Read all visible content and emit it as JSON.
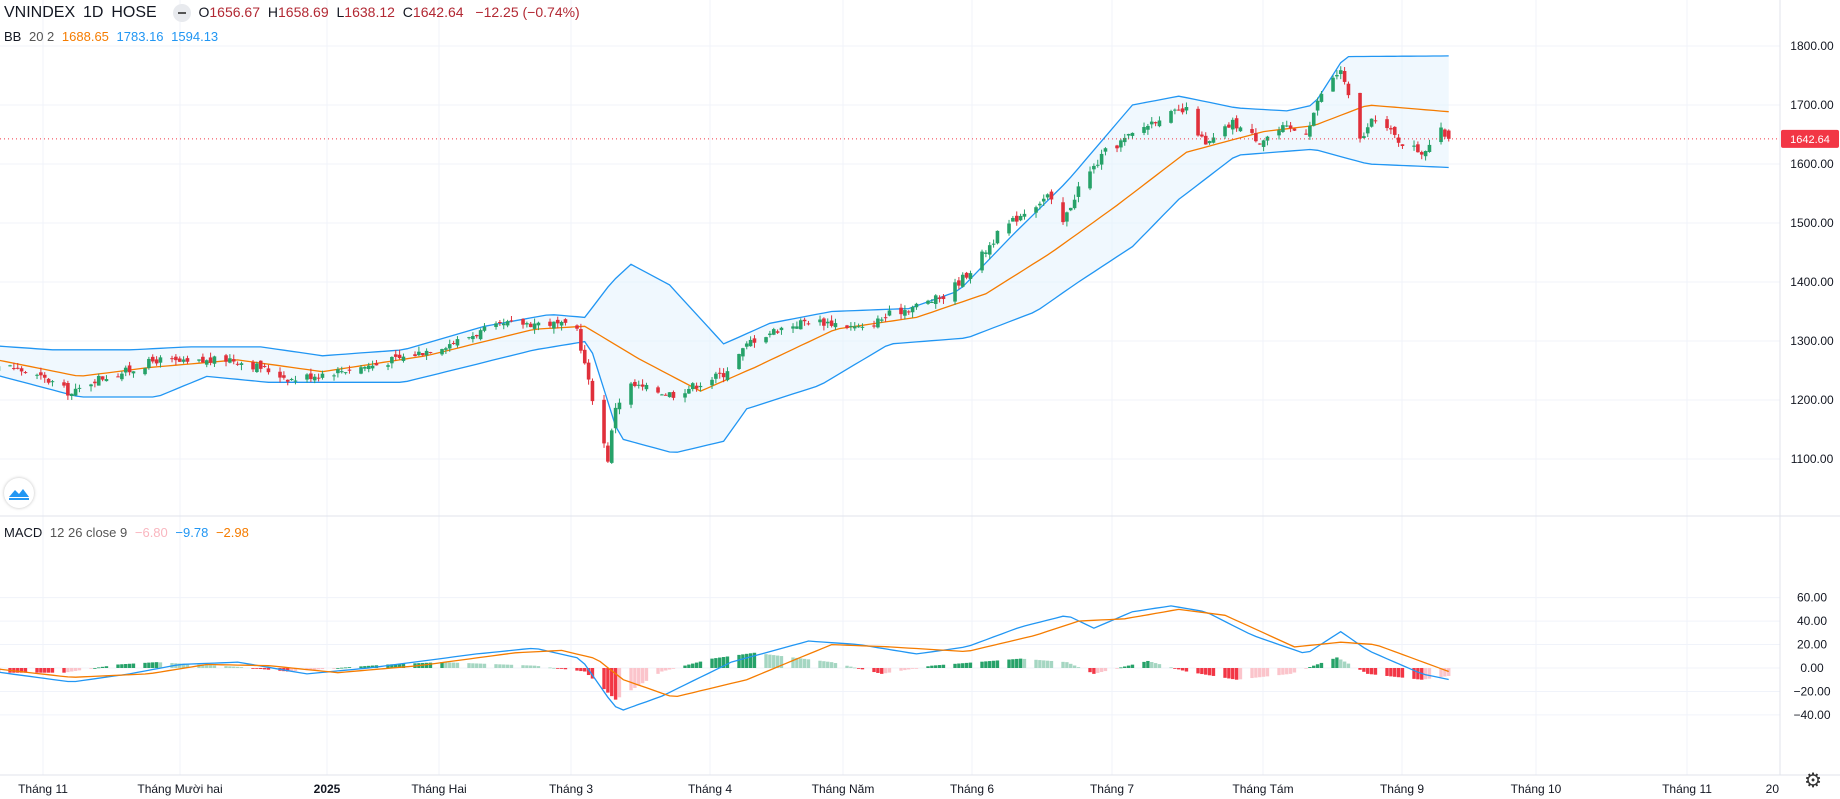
{
  "header": {
    "symbol": "VNINDEX",
    "interval": "1D",
    "exchange": "HOSE",
    "open_label": "O",
    "open": "1656.67",
    "high_label": "H",
    "high": "1658.69",
    "low_label": "L",
    "low": "1638.12",
    "close_label": "C",
    "close": "1642.64",
    "change": "−12.25 (−0.74%)"
  },
  "bb_legend": {
    "name": "BB",
    "params": "20 2",
    "basis": "1688.65",
    "upper": "1783.16",
    "lower": "1594.13"
  },
  "macd_legend": {
    "name": "MACD",
    "params": "12 26 close 9",
    "hist": "−6.80",
    "macd": "−9.78",
    "signal": "−2.98"
  },
  "price_axis": {
    "ticks": [
      "1100.00",
      "1200.00",
      "1300.00",
      "1400.00",
      "1500.00",
      "1600.00",
      "1700.00",
      "1800.00"
    ],
    "last_price_label": "1642.64"
  },
  "macd_axis": {
    "ticks": [
      "−40.00",
      "−20.00",
      "0.00",
      "20.00",
      "40.00",
      "60.00"
    ]
  },
  "time_axis": {
    "labels": [
      "Tháng 11",
      "Tháng Mười hai",
      "2025",
      "Tháng Hai",
      "Tháng 3",
      "Tháng 4",
      "Tháng Năm",
      "Tháng 6",
      "Tháng 7",
      "Tháng Tám",
      "Tháng 9",
      "Tháng 10",
      "Tháng 11",
      "20"
    ]
  },
  "colors": {
    "up": "#26a269",
    "down": "#e0303b",
    "bb_band": "#2196f3",
    "bb_basis": "#f57c00",
    "bb_fill": "#e3f2fd",
    "macd": "#2196f3",
    "signal": "#f57c00",
    "hist_up_strong": "#26a269",
    "hist_up_weak": "#a5d6c2",
    "hist_down_strong": "#f23645",
    "hist_down_weak": "#fbc4cb",
    "last_price": "#f23645"
  },
  "chart_data": [
    {
      "type": "candlestick",
      "title": "VNINDEX 1D HOSE",
      "ylim": [
        1060,
        1830
      ],
      "x_range": [
        "2024-10-24",
        "2025-11-12"
      ],
      "x_ticks": [
        "Tháng 11",
        "Tháng Mười hai",
        "2025",
        "Tháng Hai",
        "Tháng 3",
        "Tháng 4",
        "Tháng Năm",
        "Tháng 6",
        "Tháng 7",
        "Tháng Tám",
        "Tháng 9",
        "Tháng 10",
        "Tháng 11"
      ],
      "y_ticks": [
        1100,
        1200,
        1300,
        1400,
        1500,
        1600,
        1700,
        1800
      ],
      "grid": true,
      "last_ohlc": {
        "open": 1656.67,
        "high": 1658.69,
        "low": 1638.12,
        "close": 1642.64,
        "change": -12.25,
        "change_pct": -0.74
      },
      "close_path": [
        {
          "x": "2024-10-24",
          "y": 1265
        },
        {
          "x": "2024-11-05",
          "y": 1255
        },
        {
          "x": "2024-11-15",
          "y": 1230
        },
        {
          "x": "2024-11-20",
          "y": 1210
        },
        {
          "x": "2024-11-26",
          "y": 1235
        },
        {
          "x": "2024-12-05",
          "y": 1250
        },
        {
          "x": "2024-12-12",
          "y": 1268
        },
        {
          "x": "2024-12-20",
          "y": 1262
        },
        {
          "x": "2024-12-31",
          "y": 1270
        },
        {
          "x": "2025-01-08",
          "y": 1255
        },
        {
          "x": "2025-01-16",
          "y": 1235
        },
        {
          "x": "2025-01-24",
          "y": 1245
        },
        {
          "x": "2025-02-07",
          "y": 1260
        },
        {
          "x": "2025-02-17",
          "y": 1278
        },
        {
          "x": "2025-02-28",
          "y": 1300
        },
        {
          "x": "2025-03-07",
          "y": 1318
        },
        {
          "x": "2025-03-14",
          "y": 1330
        },
        {
          "x": "2025-03-24",
          "y": 1330
        },
        {
          "x": "2025-03-31",
          "y": 1320
        },
        {
          "x": "2025-04-03",
          "y": 1230
        },
        {
          "x": "2025-04-08",
          "y": 1100
        },
        {
          "x": "2025-04-10",
          "y": 1190
        },
        {
          "x": "2025-04-14",
          "y": 1225
        },
        {
          "x": "2025-04-21",
          "y": 1215
        },
        {
          "x": "2025-04-25",
          "y": 1210
        },
        {
          "x": "2025-05-08",
          "y": 1245
        },
        {
          "x": "2025-05-15",
          "y": 1300
        },
        {
          "x": "2025-05-22",
          "y": 1320
        },
        {
          "x": "2025-05-30",
          "y": 1335
        },
        {
          "x": "2025-06-06",
          "y": 1330
        },
        {
          "x": "2025-06-13",
          "y": 1320
        },
        {
          "x": "2025-06-20",
          "y": 1345
        },
        {
          "x": "2025-06-27",
          "y": 1360
        },
        {
          "x": "2025-07-04",
          "y": 1375
        },
        {
          "x": "2025-07-11",
          "y": 1420
        },
        {
          "x": "2025-07-18",
          "y": 1480
        },
        {
          "x": "2025-07-25",
          "y": 1520
        },
        {
          "x": "2025-07-31",
          "y": 1545
        },
        {
          "x": "2025-08-04",
          "y": 1500
        },
        {
          "x": "2025-08-08",
          "y": 1560
        },
        {
          "x": "2025-08-15",
          "y": 1620
        },
        {
          "x": "2025-08-22",
          "y": 1650
        },
        {
          "x": "2025-08-29",
          "y": 1680
        },
        {
          "x": "2025-09-05",
          "y": 1690
        },
        {
          "x": "2025-09-10",
          "y": 1630
        },
        {
          "x": "2025-09-17",
          "y": 1670
        },
        {
          "x": "2025-09-24",
          "y": 1640
        },
        {
          "x": "2025-09-30",
          "y": 1660
        },
        {
          "x": "2025-10-06",
          "y": 1655
        },
        {
          "x": "2025-10-10",
          "y": 1720
        },
        {
          "x": "2025-10-15",
          "y": 1760
        },
        {
          "x": "2025-10-20",
          "y": 1640
        },
        {
          "x": "2025-10-24",
          "y": 1680
        },
        {
          "x": "2025-10-30",
          "y": 1640
        },
        {
          "x": "2025-11-05",
          "y": 1620
        },
        {
          "x": "2025-11-10",
          "y": 1655
        },
        {
          "x": "2025-11-12",
          "y": 1642.64
        }
      ],
      "bollinger": {
        "name": "BB",
        "length": 20,
        "stddev": 2,
        "last": {
          "basis": 1688.65,
          "upper": 1783.16,
          "lower": 1594.13
        },
        "upper_path": [
          {
            "x": "2024-10-24",
            "y": 1295
          },
          {
            "x": "2024-11-15",
            "y": 1285
          },
          {
            "x": "2024-12-05",
            "y": 1285
          },
          {
            "x": "2024-12-20",
            "y": 1290
          },
          {
            "x": "2025-01-08",
            "y": 1290
          },
          {
            "x": "2025-01-24",
            "y": 1275
          },
          {
            "x": "2025-02-14",
            "y": 1285
          },
          {
            "x": "2025-03-07",
            "y": 1325
          },
          {
            "x": "2025-03-24",
            "y": 1345
          },
          {
            "x": "2025-04-02",
            "y": 1340
          },
          {
            "x": "2025-04-09",
            "y": 1400
          },
          {
            "x": "2025-04-14",
            "y": 1430
          },
          {
            "x": "2025-04-24",
            "y": 1395
          },
          {
            "x": "2025-05-08",
            "y": 1295
          },
          {
            "x": "2025-05-20",
            "y": 1330
          },
          {
            "x": "2025-06-05",
            "y": 1350
          },
          {
            "x": "2025-06-25",
            "y": 1355
          },
          {
            "x": "2025-07-08",
            "y": 1385
          },
          {
            "x": "2025-07-22",
            "y": 1480
          },
          {
            "x": "2025-08-05",
            "y": 1570
          },
          {
            "x": "2025-08-22",
            "y": 1700
          },
          {
            "x": "2025-09-03",
            "y": 1715
          },
          {
            "x": "2025-09-18",
            "y": 1695
          },
          {
            "x": "2025-10-01",
            "y": 1690
          },
          {
            "x": "2025-10-08",
            "y": 1700
          },
          {
            "x": "2025-10-16",
            "y": 1782
          },
          {
            "x": "2025-11-12",
            "y": 1783.16
          }
        ],
        "basis_path": [
          {
            "x": "2024-10-24",
            "y": 1278
          },
          {
            "x": "2024-11-22",
            "y": 1240
          },
          {
            "x": "2024-12-10",
            "y": 1255
          },
          {
            "x": "2025-01-02",
            "y": 1268
          },
          {
            "x": "2025-01-24",
            "y": 1248
          },
          {
            "x": "2025-02-20",
            "y": 1275
          },
          {
            "x": "2025-03-20",
            "y": 1320
          },
          {
            "x": "2025-04-02",
            "y": 1325
          },
          {
            "x": "2025-04-16",
            "y": 1270
          },
          {
            "x": "2025-05-02",
            "y": 1215
          },
          {
            "x": "2025-05-16",
            "y": 1255
          },
          {
            "x": "2025-06-06",
            "y": 1320
          },
          {
            "x": "2025-06-27",
            "y": 1340
          },
          {
            "x": "2025-07-15",
            "y": 1380
          },
          {
            "x": "2025-08-01",
            "y": 1450
          },
          {
            "x": "2025-08-18",
            "y": 1530
          },
          {
            "x": "2025-09-05",
            "y": 1620
          },
          {
            "x": "2025-09-25",
            "y": 1655
          },
          {
            "x": "2025-10-08",
            "y": 1665
          },
          {
            "x": "2025-10-22",
            "y": 1700
          },
          {
            "x": "2025-11-12",
            "y": 1688.65
          }
        ],
        "lower_path": [
          {
            "x": "2024-10-24",
            "y": 1255
          },
          {
            "x": "2024-11-22",
            "y": 1205
          },
          {
            "x": "2024-12-12",
            "y": 1205
          },
          {
            "x": "2024-12-25",
            "y": 1240
          },
          {
            "x": "2025-01-10",
            "y": 1230
          },
          {
            "x": "2025-02-14",
            "y": 1230
          },
          {
            "x": "2025-03-20",
            "y": 1285
          },
          {
            "x": "2025-04-03",
            "y": 1300
          },
          {
            "x": "2025-04-11",
            "y": 1135
          },
          {
            "x": "2025-04-25",
            "y": 1110
          },
          {
            "x": "2025-05-08",
            "y": 1130
          },
          {
            "x": "2025-05-14",
            "y": 1185
          },
          {
            "x": "2025-06-02",
            "y": 1225
          },
          {
            "x": "2025-06-20",
            "y": 1295
          },
          {
            "x": "2025-07-10",
            "y": 1305
          },
          {
            "x": "2025-07-28",
            "y": 1350
          },
          {
            "x": "2025-08-08",
            "y": 1400
          },
          {
            "x": "2025-08-22",
            "y": 1460
          },
          {
            "x": "2025-09-03",
            "y": 1540
          },
          {
            "x": "2025-09-18",
            "y": 1615
          },
          {
            "x": "2025-10-08",
            "y": 1625
          },
          {
            "x": "2025-10-22",
            "y": 1600
          },
          {
            "x": "2025-11-12",
            "y": 1594.13
          }
        ]
      }
    },
    {
      "type": "line",
      "title": "MACD 12 26 close 9",
      "ylim": [
        -47,
        63
      ],
      "y_ticks": [
        -40,
        -20,
        0,
        20,
        40,
        60
      ],
      "grid": true,
      "last": {
        "histogram": -6.8,
        "macd": -9.78,
        "signal": -2.98
      },
      "series": [
        {
          "name": "MACD",
          "points": [
            {
              "x": "2024-10-24",
              "y": 0
            },
            {
              "x": "2024-11-20",
              "y": -12
            },
            {
              "x": "2024-12-05",
              "y": -5
            },
            {
              "x": "2024-12-18",
              "y": 3
            },
            {
              "x": "2025-01-02",
              "y": 5
            },
            {
              "x": "2025-01-20",
              "y": -5
            },
            {
              "x": "2025-02-05",
              "y": 0
            },
            {
              "x": "2025-03-05",
              "y": 12
            },
            {
              "x": "2025-03-20",
              "y": 17
            },
            {
              "x": "2025-04-01",
              "y": 8
            },
            {
              "x": "2025-04-08",
              "y": -25
            },
            {
              "x": "2025-04-11",
              "y": -37
            },
            {
              "x": "2025-04-22",
              "y": -24
            },
            {
              "x": "2025-05-10",
              "y": 5
            },
            {
              "x": "2025-05-30",
              "y": 23
            },
            {
              "x": "2025-06-12",
              "y": 20
            },
            {
              "x": "2025-06-27",
              "y": 12
            },
            {
              "x": "2025-07-10",
              "y": 18
            },
            {
              "x": "2025-07-24",
              "y": 35
            },
            {
              "x": "2025-08-05",
              "y": 45
            },
            {
              "x": "2025-08-12",
              "y": 34
            },
            {
              "x": "2025-08-22",
              "y": 48
            },
            {
              "x": "2025-09-01",
              "y": 53
            },
            {
              "x": "2025-09-10",
              "y": 48
            },
            {
              "x": "2025-09-22",
              "y": 28
            },
            {
              "x": "2025-10-06",
              "y": 12
            },
            {
              "x": "2025-10-15",
              "y": 31
            },
            {
              "x": "2025-10-22",
              "y": 15
            },
            {
              "x": "2025-11-05",
              "y": -5
            },
            {
              "x": "2025-11-12",
              "y": -9.78
            }
          ]
        },
        {
          "name": "Signal",
          "points": [
            {
              "x": "2024-10-24",
              "y": 2
            },
            {
              "x": "2024-11-20",
              "y": -8
            },
            {
              "x": "2024-12-10",
              "y": -5
            },
            {
              "x": "2024-12-25",
              "y": 3
            },
            {
              "x": "2025-01-10",
              "y": 2
            },
            {
              "x": "2025-01-28",
              "y": -4
            },
            {
              "x": "2025-02-18",
              "y": 2
            },
            {
              "x": "2025-03-15",
              "y": 13
            },
            {
              "x": "2025-03-27",
              "y": 15
            },
            {
              "x": "2025-04-05",
              "y": 8
            },
            {
              "x": "2025-04-12",
              "y": -10
            },
            {
              "x": "2025-04-25",
              "y": -25
            },
            {
              "x": "2025-05-14",
              "y": -10
            },
            {
              "x": "2025-06-05",
              "y": 20
            },
            {
              "x": "2025-06-20",
              "y": 18
            },
            {
              "x": "2025-07-10",
              "y": 14
            },
            {
              "x": "2025-07-28",
              "y": 28
            },
            {
              "x": "2025-08-08",
              "y": 40
            },
            {
              "x": "2025-08-20",
              "y": 42
            },
            {
              "x": "2025-09-03",
              "y": 50
            },
            {
              "x": "2025-09-15",
              "y": 45
            },
            {
              "x": "2025-10-03",
              "y": 18
            },
            {
              "x": "2025-10-15",
              "y": 22
            },
            {
              "x": "2025-10-24",
              "y": 20
            },
            {
              "x": "2025-11-12",
              "y": -2.98
            }
          ]
        }
      ],
      "histogram": [
        {
          "x": "2024-10-24",
          "y": -4
        },
        {
          "x": "2024-11-18",
          "y": -4
        },
        {
          "x": "2024-12-02",
          "y": 3
        },
        {
          "x": "2024-12-12",
          "y": 5
        },
        {
          "x": "2025-01-02",
          "y": 1
        },
        {
          "x": "2025-01-15",
          "y": -3
        },
        {
          "x": "2025-02-10",
          "y": 3
        },
        {
          "x": "2025-02-24",
          "y": 5
        },
        {
          "x": "2025-03-20",
          "y": 2
        },
        {
          "x": "2025-04-02",
          "y": -3
        },
        {
          "x": "2025-04-10",
          "y": -27
        },
        {
          "x": "2025-04-22",
          "y": -3
        },
        {
          "x": "2025-05-05",
          "y": 8
        },
        {
          "x": "2025-05-16",
          "y": 13
        },
        {
          "x": "2025-06-05",
          "y": 5
        },
        {
          "x": "2025-06-18",
          "y": -5
        },
        {
          "x": "2025-07-01",
          "y": 2
        },
        {
          "x": "2025-07-24",
          "y": 8
        },
        {
          "x": "2025-08-05",
          "y": 5
        },
        {
          "x": "2025-08-12",
          "y": -5
        },
        {
          "x": "2025-08-26",
          "y": 6
        },
        {
          "x": "2025-09-05",
          "y": -3
        },
        {
          "x": "2025-09-18",
          "y": -10
        },
        {
          "x": "2025-10-02",
          "y": -5
        },
        {
          "x": "2025-10-14",
          "y": 9
        },
        {
          "x": "2025-10-22",
          "y": -5
        },
        {
          "x": "2025-11-05",
          "y": -10
        },
        {
          "x": "2025-11-12",
          "y": -6.8
        }
      ]
    }
  ]
}
